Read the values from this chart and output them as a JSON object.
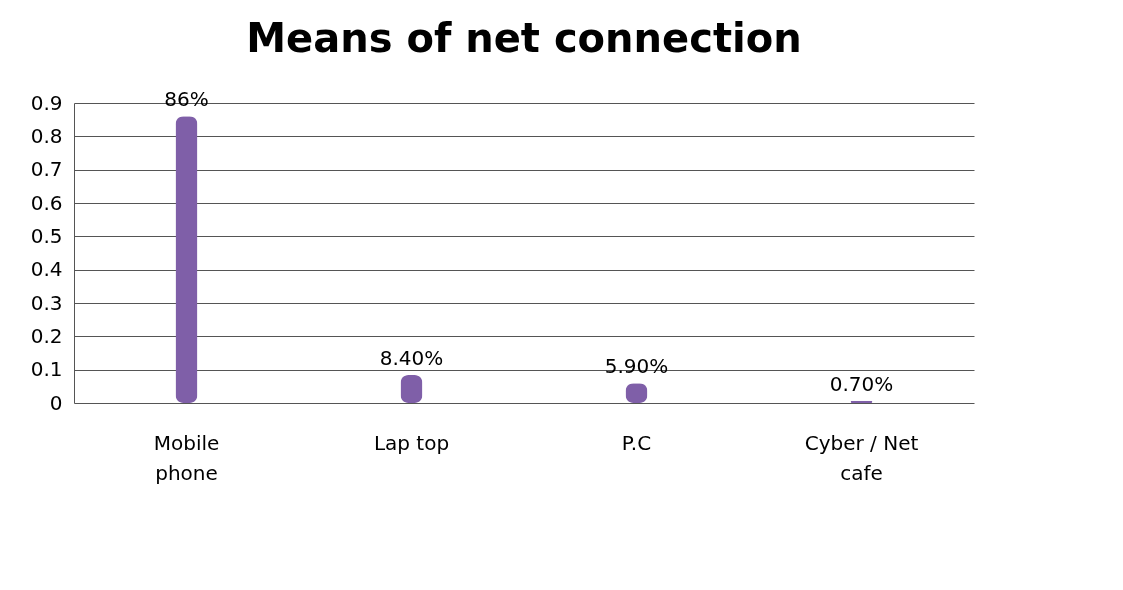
{
  "chart_data": {
    "type": "bar",
    "title": "Means of net connection",
    "categories": [
      "Mobile phone",
      "Lap top",
      "P.C",
      "Cyber / Net cafe"
    ],
    "values": [
      0.86,
      0.084,
      0.059,
      0.007
    ],
    "value_labels": [
      "86%",
      "8.40%",
      "5.90%",
      "0.70%"
    ],
    "color": "#7f5fa8",
    "ylim": [
      0,
      0.9
    ],
    "yticks": [
      0,
      0.1,
      0.2,
      0.3,
      0.4,
      0.5,
      0.6,
      0.7,
      0.8,
      0.9
    ],
    "grid": "y"
  }
}
